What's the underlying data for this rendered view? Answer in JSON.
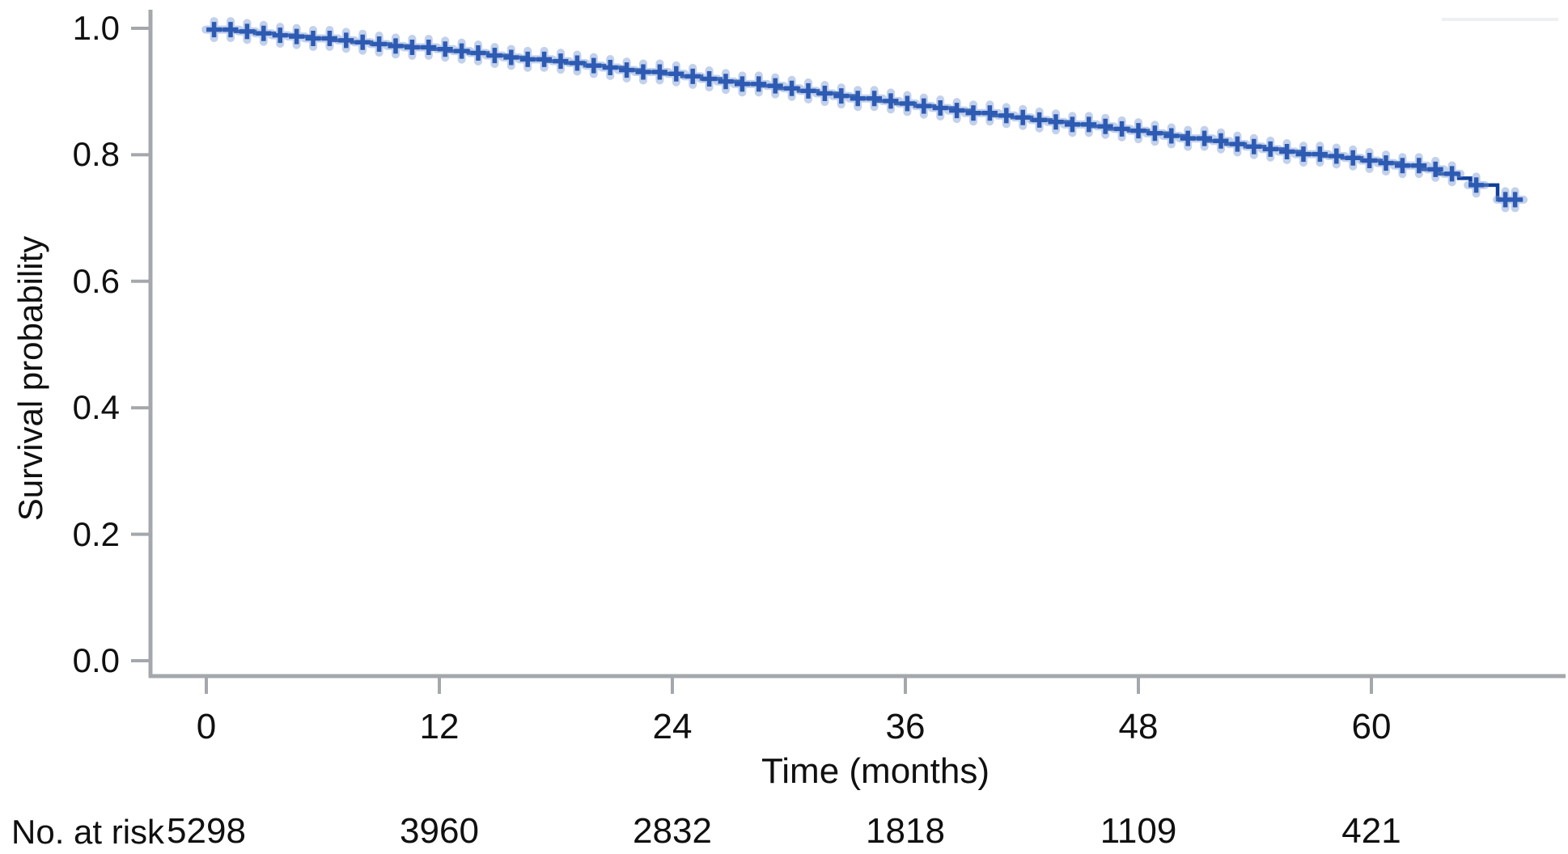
{
  "chart_data": {
    "type": "line",
    "subtype": "kaplan-meier-step-curve",
    "title": "",
    "xlabel": "Time (months)",
    "ylabel": "Survival probability",
    "xlim": [
      0,
      70
    ],
    "ylim": [
      0.0,
      1.0
    ],
    "grid": false,
    "legend_position": "none",
    "x_ticks": [
      0,
      12,
      24,
      36,
      48,
      60
    ],
    "x_tick_labels": [
      "0",
      "12",
      "24",
      "36",
      "48",
      "60"
    ],
    "y_ticks": [
      0.0,
      0.2,
      0.4,
      0.6,
      0.8,
      1.0
    ],
    "y_tick_labels": [
      "0.0",
      "0.2",
      "0.4",
      "0.6",
      "0.8",
      "1.0"
    ],
    "axis_color": "#a4a8ac",
    "series": [
      {
        "name": "survival-curve",
        "line_color": "#10409a",
        "censor_color": "#2d5ab2",
        "censor_halo_color": "rgba(120,152,212,0.45)",
        "end_time": 67.8,
        "steps": [
          [
            0.2,
            0.998
          ],
          [
            1.5,
            0.995
          ],
          [
            2.5,
            0.992
          ],
          [
            3.5,
            0.989
          ],
          [
            4.5,
            0.987
          ],
          [
            5.5,
            0.984
          ],
          [
            6.5,
            0.981
          ],
          [
            7.5,
            0.978
          ],
          [
            8.5,
            0.975
          ],
          [
            9.5,
            0.972
          ],
          [
            10.5,
            0.97
          ],
          [
            11.5,
            0.967
          ],
          [
            12.5,
            0.964
          ],
          [
            13.5,
            0.961
          ],
          [
            14.5,
            0.957
          ],
          [
            15.5,
            0.954
          ],
          [
            16.5,
            0.951
          ],
          [
            17.5,
            0.948
          ],
          [
            18.5,
            0.945
          ],
          [
            19.5,
            0.941
          ],
          [
            20.5,
            0.938
          ],
          [
            21.5,
            0.934
          ],
          [
            22.5,
            0.931
          ],
          [
            23.5,
            0.928
          ],
          [
            24.5,
            0.924
          ],
          [
            25.5,
            0.92
          ],
          [
            26.5,
            0.916
          ],
          [
            27.5,
            0.912
          ],
          [
            28.5,
            0.909
          ],
          [
            29.5,
            0.905
          ],
          [
            30.5,
            0.901
          ],
          [
            31.5,
            0.897
          ],
          [
            32.5,
            0.893
          ],
          [
            33.5,
            0.889
          ],
          [
            34.5,
            0.885
          ],
          [
            35.5,
            0.881
          ],
          [
            36.5,
            0.877
          ],
          [
            37.5,
            0.874
          ],
          [
            38.5,
            0.87
          ],
          [
            39.5,
            0.866
          ],
          [
            40.5,
            0.862
          ],
          [
            41.5,
            0.859
          ],
          [
            42.5,
            0.855
          ],
          [
            43.5,
            0.852
          ],
          [
            44.5,
            0.848
          ],
          [
            45.5,
            0.845
          ],
          [
            46.5,
            0.841
          ],
          [
            47.5,
            0.838
          ],
          [
            48.5,
            0.834
          ],
          [
            49.5,
            0.83
          ],
          [
            50.5,
            0.826
          ],
          [
            51.5,
            0.822
          ],
          [
            52.5,
            0.817
          ],
          [
            53.5,
            0.813
          ],
          [
            54.5,
            0.809
          ],
          [
            55.5,
            0.805
          ],
          [
            56.5,
            0.801
          ],
          [
            57.5,
            0.798
          ],
          [
            58.5,
            0.795
          ],
          [
            59.5,
            0.791
          ],
          [
            60.5,
            0.787
          ],
          [
            61.5,
            0.783
          ],
          [
            62.5,
            0.777
          ],
          [
            63.5,
            0.77
          ],
          [
            64.5,
            0.763
          ],
          [
            65.1,
            0.752
          ],
          [
            66.5,
            0.729
          ]
        ],
        "censor_marks": {
          "from": 0.4,
          "to": 64.6,
          "step": 0.85,
          "extra": [
            65.4,
            66.9,
            67.4
          ]
        }
      }
    ],
    "risk_table": {
      "label": "No. at risk",
      "times": [
        0,
        12,
        24,
        36,
        48,
        60
      ],
      "counts": [
        "5298",
        "3960",
        "2832",
        "1818",
        "1109",
        "421"
      ]
    }
  }
}
